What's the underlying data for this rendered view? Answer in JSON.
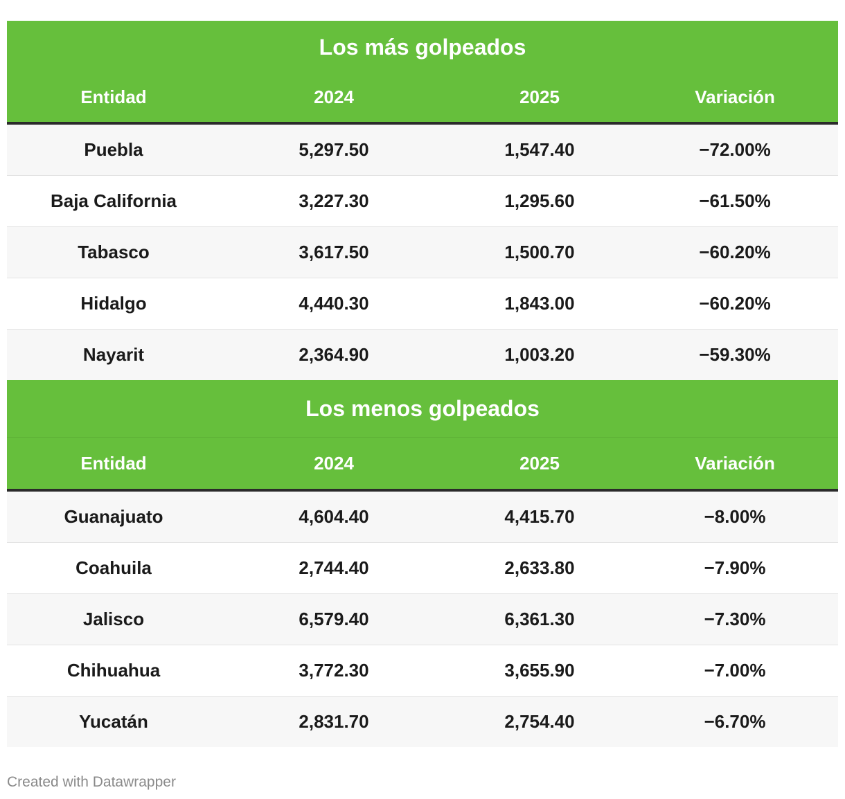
{
  "chart_data": {
    "type": "table",
    "columns": [
      "Entidad",
      "2024",
      "2025",
      "Variación"
    ],
    "sections": [
      {
        "title": "Los más golpeados",
        "rows": [
          {
            "entidad": "Puebla",
            "y2024": "5,297.50",
            "y2025": "1,547.40",
            "variacion": "−72.00%"
          },
          {
            "entidad": "Baja California",
            "y2024": "3,227.30",
            "y2025": "1,295.60",
            "variacion": "−61.50%"
          },
          {
            "entidad": "Tabasco",
            "y2024": "3,617.50",
            "y2025": "1,500.70",
            "variacion": "−60.20%"
          },
          {
            "entidad": "Hidalgo",
            "y2024": "4,440.30",
            "y2025": "1,843.00",
            "variacion": "−60.20%"
          },
          {
            "entidad": "Nayarit",
            "y2024": "2,364.90",
            "y2025": "1,003.20",
            "variacion": "−59.30%"
          }
        ]
      },
      {
        "title": "Los menos golpeados",
        "rows": [
          {
            "entidad": "Guanajuato",
            "y2024": "4,604.40",
            "y2025": "4,415.70",
            "variacion": "−8.00%"
          },
          {
            "entidad": "Coahuila",
            "y2024": "2,744.40",
            "y2025": "2,633.80",
            "variacion": "−7.90%"
          },
          {
            "entidad": "Jalisco",
            "y2024": "6,579.40",
            "y2025": "6,361.30",
            "variacion": "−7.30%"
          },
          {
            "entidad": "Chihuahua",
            "y2024": "3,772.30",
            "y2025": "3,655.90",
            "variacion": "−7.00%"
          },
          {
            "entidad": "Yucatán",
            "y2024": "2,831.70",
            "y2025": "2,754.40",
            "variacion": "−6.70%"
          }
        ]
      }
    ]
  },
  "colors": {
    "header_green": "#66bf3c",
    "header_text": "#ffffff",
    "row_alt": "#f7f7f7"
  },
  "footer": {
    "credit": "Created with Datawrapper"
  }
}
